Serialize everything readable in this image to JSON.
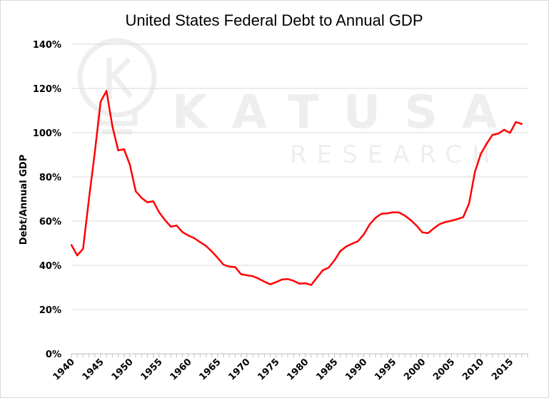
{
  "chart_data": {
    "type": "line",
    "title": "United States Federal Debt to Annual GDP",
    "xlabel": "",
    "ylabel": "Debt/Annual GDP",
    "xlim": [
      1940,
      2018
    ],
    "ylim": [
      0,
      140
    ],
    "x_ticks": [
      "1940",
      "1945",
      "1950",
      "1955",
      "1960",
      "1965",
      "1970",
      "1975",
      "1980",
      "1985",
      "1990",
      "1995",
      "2000",
      "2005",
      "2010",
      "2015"
    ],
    "y_ticks": [
      "0%",
      "20%",
      "40%",
      "60%",
      "80%",
      "100%",
      "120%",
      "140%"
    ],
    "grid": "horizontal",
    "legend": "none",
    "series": [
      {
        "color": "#ff0000",
        "x": [
          1940,
          1941,
          1942,
          1943,
          1944,
          1945,
          1946,
          1947,
          1948,
          1949,
          1950,
          1951,
          1952,
          1953,
          1954,
          1955,
          1956,
          1957,
          1958,
          1959,
          1960,
          1961,
          1962,
          1963,
          1964,
          1965,
          1966,
          1967,
          1968,
          1969,
          1970,
          1971,
          1972,
          1973,
          1974,
          1975,
          1976,
          1977,
          1978,
          1979,
          1980,
          1981,
          1982,
          1983,
          1984,
          1985,
          1986,
          1987,
          1988,
          1989,
          1990,
          1991,
          1992,
          1993,
          1994,
          1995,
          1996,
          1997,
          1998,
          1999,
          2000,
          2001,
          2002,
          2003,
          2004,
          2005,
          2006,
          2007,
          2008,
          2009,
          2010,
          2011,
          2012,
          2013,
          2014,
          2015,
          2016,
          2017
        ],
        "values": [
          49.2,
          44.5,
          47.5,
          70,
          91,
          114,
          118.9,
          103,
          92,
          92.5,
          85.5,
          73.5,
          70.5,
          68.5,
          69,
          64,
          60.5,
          57.5,
          58,
          55,
          53.5,
          52.3,
          50.5,
          48.8,
          46.3,
          43.4,
          40.3,
          39.4,
          39.2,
          36,
          35.5,
          35.1,
          34,
          32.6,
          31.4,
          32.4,
          33.6,
          33.8,
          33,
          31.7,
          31.9,
          31.1,
          34.5,
          37.8,
          39,
          42.3,
          46.5,
          48.5,
          49.8,
          50.9,
          54,
          58.5,
          61.5,
          63.3,
          63.5,
          64,
          63.9,
          62.5,
          60.5,
          58,
          54.9,
          54.6,
          56.8,
          58.7,
          59.6,
          60.2,
          60.9,
          61.8,
          68,
          82.3,
          90.4,
          95,
          99,
          99.6,
          101.3,
          99.9,
          104.8,
          103.9
        ]
      }
    ]
  },
  "watermark": {
    "brand": "KATUSA",
    "sub": "RESEARCH",
    "icon": "lightbulb-k-icon"
  }
}
